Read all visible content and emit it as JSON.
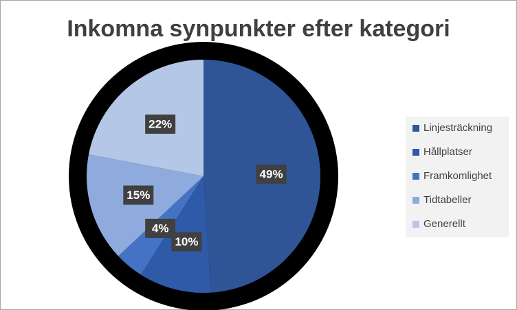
{
  "chart_data": {
    "type": "pie",
    "title": "Inkomna synpunkter efter kategori",
    "categories": [
      "Linjesträckning",
      "Hållplatser",
      "Framkomlighet",
      "Tidtabeller",
      "Generellt"
    ],
    "values": [
      49,
      10,
      4,
      15,
      22
    ],
    "value_labels": [
      "49%",
      "10%",
      "4%",
      "15%",
      "22%"
    ],
    "colors": [
      "#2f5597",
      "#2e5aa8",
      "#4472c4",
      "#8faadc",
      "#b4c7e7"
    ],
    "legend": "right"
  }
}
